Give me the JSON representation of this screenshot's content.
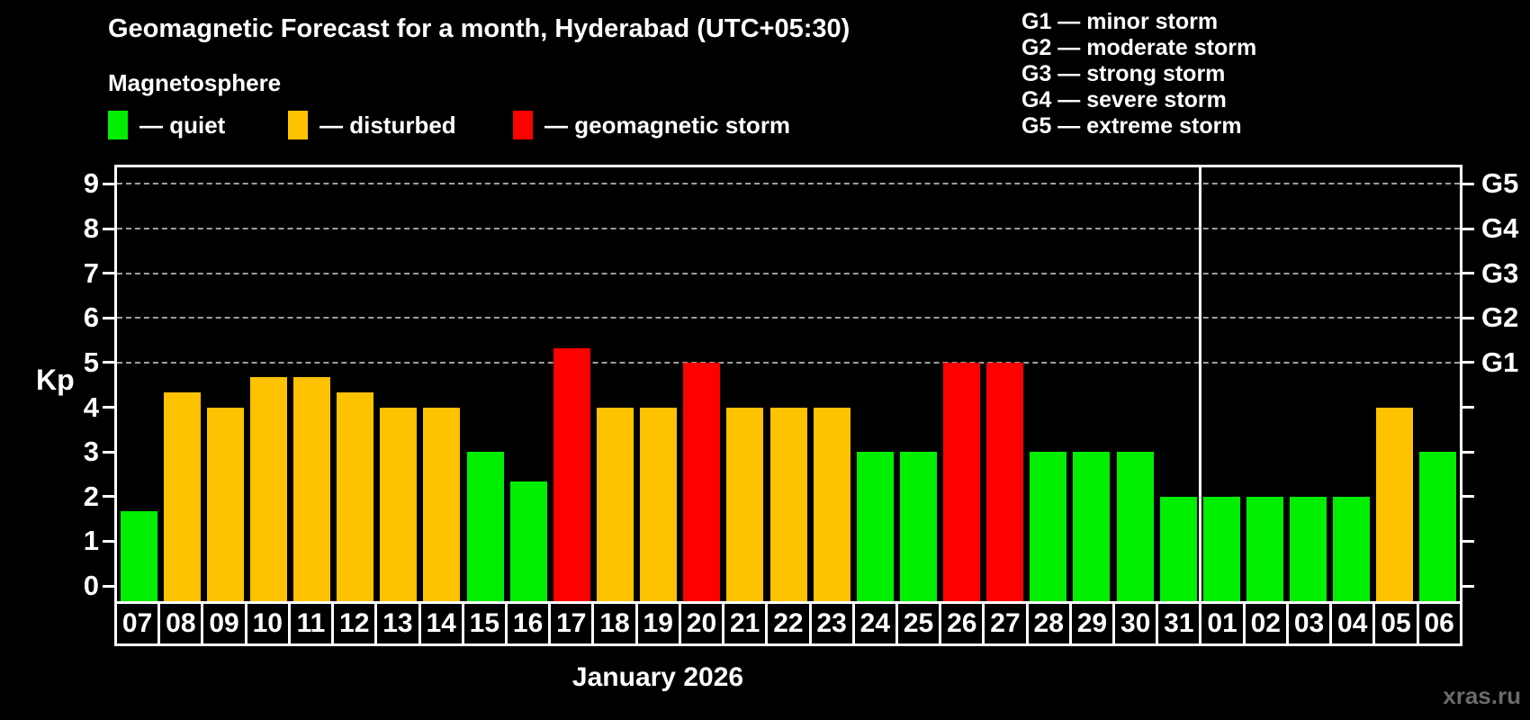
{
  "title": "Geomagnetic Forecast for a month, Hyderabad (UTC+05:30)",
  "subtitle": "Magnetosphere",
  "legend": {
    "items": [
      {
        "label": "— quiet",
        "status": "quiet",
        "color": "#00ee00"
      },
      {
        "label": "— disturbed",
        "status": "disturbed",
        "color": "#ffc200"
      },
      {
        "label": "— geomagnetic storm",
        "status": "storm",
        "color": "#ff0000"
      }
    ]
  },
  "storm_legend": {
    "items": [
      "G1 — minor storm",
      "G2 — moderate storm",
      "G3 — strong storm",
      "G4 — severe storm",
      "G5 — extreme storm"
    ]
  },
  "watermark": "xras.ru",
  "chart_data": {
    "type": "bar",
    "title": "Geomagnetic Forecast for a month, Hyderabad (UTC+05:30)",
    "ylabel": "Kp",
    "xlabel": "January 2026",
    "ylim": [
      0,
      9.5
    ],
    "yticks": [
      0,
      1,
      2,
      3,
      4,
      5,
      6,
      7,
      8,
      9
    ],
    "gridline_kp": [
      5,
      6,
      7,
      8,
      9
    ],
    "grid": "dashed horizontal at Kp 5-9",
    "legend_position": "top",
    "g_levels": [
      {
        "kp": 5,
        "label": "G1"
      },
      {
        "kp": 6,
        "label": "G2"
      },
      {
        "kp": 7,
        "label": "G3"
      },
      {
        "kp": 8,
        "label": "G4"
      },
      {
        "kp": 9,
        "label": "G5"
      }
    ],
    "month_separator_index": 25,
    "categories": [
      "07",
      "08",
      "09",
      "10",
      "11",
      "12",
      "13",
      "14",
      "15",
      "16",
      "17",
      "18",
      "19",
      "20",
      "21",
      "22",
      "23",
      "24",
      "25",
      "26",
      "27",
      "28",
      "29",
      "30",
      "31",
      "01",
      "02",
      "03",
      "04",
      "05",
      "06"
    ],
    "bars": [
      {
        "day": "07",
        "kp": 1.67,
        "status": "quiet"
      },
      {
        "day": "08",
        "kp": 4.33,
        "status": "disturbed"
      },
      {
        "day": "09",
        "kp": 4.0,
        "status": "disturbed"
      },
      {
        "day": "10",
        "kp": 4.67,
        "status": "disturbed"
      },
      {
        "day": "11",
        "kp": 4.67,
        "status": "disturbed"
      },
      {
        "day": "12",
        "kp": 4.33,
        "status": "disturbed"
      },
      {
        "day": "13",
        "kp": 4.0,
        "status": "disturbed"
      },
      {
        "day": "14",
        "kp": 4.0,
        "status": "disturbed"
      },
      {
        "day": "15",
        "kp": 3.0,
        "status": "quiet"
      },
      {
        "day": "16",
        "kp": 2.33,
        "status": "quiet"
      },
      {
        "day": "17",
        "kp": 5.33,
        "status": "storm"
      },
      {
        "day": "18",
        "kp": 4.0,
        "status": "disturbed"
      },
      {
        "day": "19",
        "kp": 4.0,
        "status": "disturbed"
      },
      {
        "day": "20",
        "kp": 5.0,
        "status": "storm"
      },
      {
        "day": "21",
        "kp": 4.0,
        "status": "disturbed"
      },
      {
        "day": "22",
        "kp": 4.0,
        "status": "disturbed"
      },
      {
        "day": "23",
        "kp": 4.0,
        "status": "disturbed"
      },
      {
        "day": "24",
        "kp": 3.0,
        "status": "quiet"
      },
      {
        "day": "25",
        "kp": 3.0,
        "status": "quiet"
      },
      {
        "day": "26",
        "kp": 5.0,
        "status": "storm"
      },
      {
        "day": "27",
        "kp": 5.0,
        "status": "storm"
      },
      {
        "day": "28",
        "kp": 3.0,
        "status": "quiet"
      },
      {
        "day": "29",
        "kp": 3.0,
        "status": "quiet"
      },
      {
        "day": "30",
        "kp": 3.0,
        "status": "quiet"
      },
      {
        "day": "31",
        "kp": 2.0,
        "status": "quiet"
      },
      {
        "day": "01",
        "kp": 2.0,
        "status": "quiet"
      },
      {
        "day": "02",
        "kp": 2.0,
        "status": "quiet"
      },
      {
        "day": "03",
        "kp": 2.0,
        "status": "quiet"
      },
      {
        "day": "04",
        "kp": 2.0,
        "status": "quiet"
      },
      {
        "day": "05",
        "kp": 4.0,
        "status": "disturbed"
      },
      {
        "day": "06",
        "kp": 3.0,
        "status": "quiet"
      }
    ],
    "status_colors": {
      "quiet": "#00ee00",
      "disturbed": "#ffc200",
      "storm": "#ff0000"
    }
  }
}
